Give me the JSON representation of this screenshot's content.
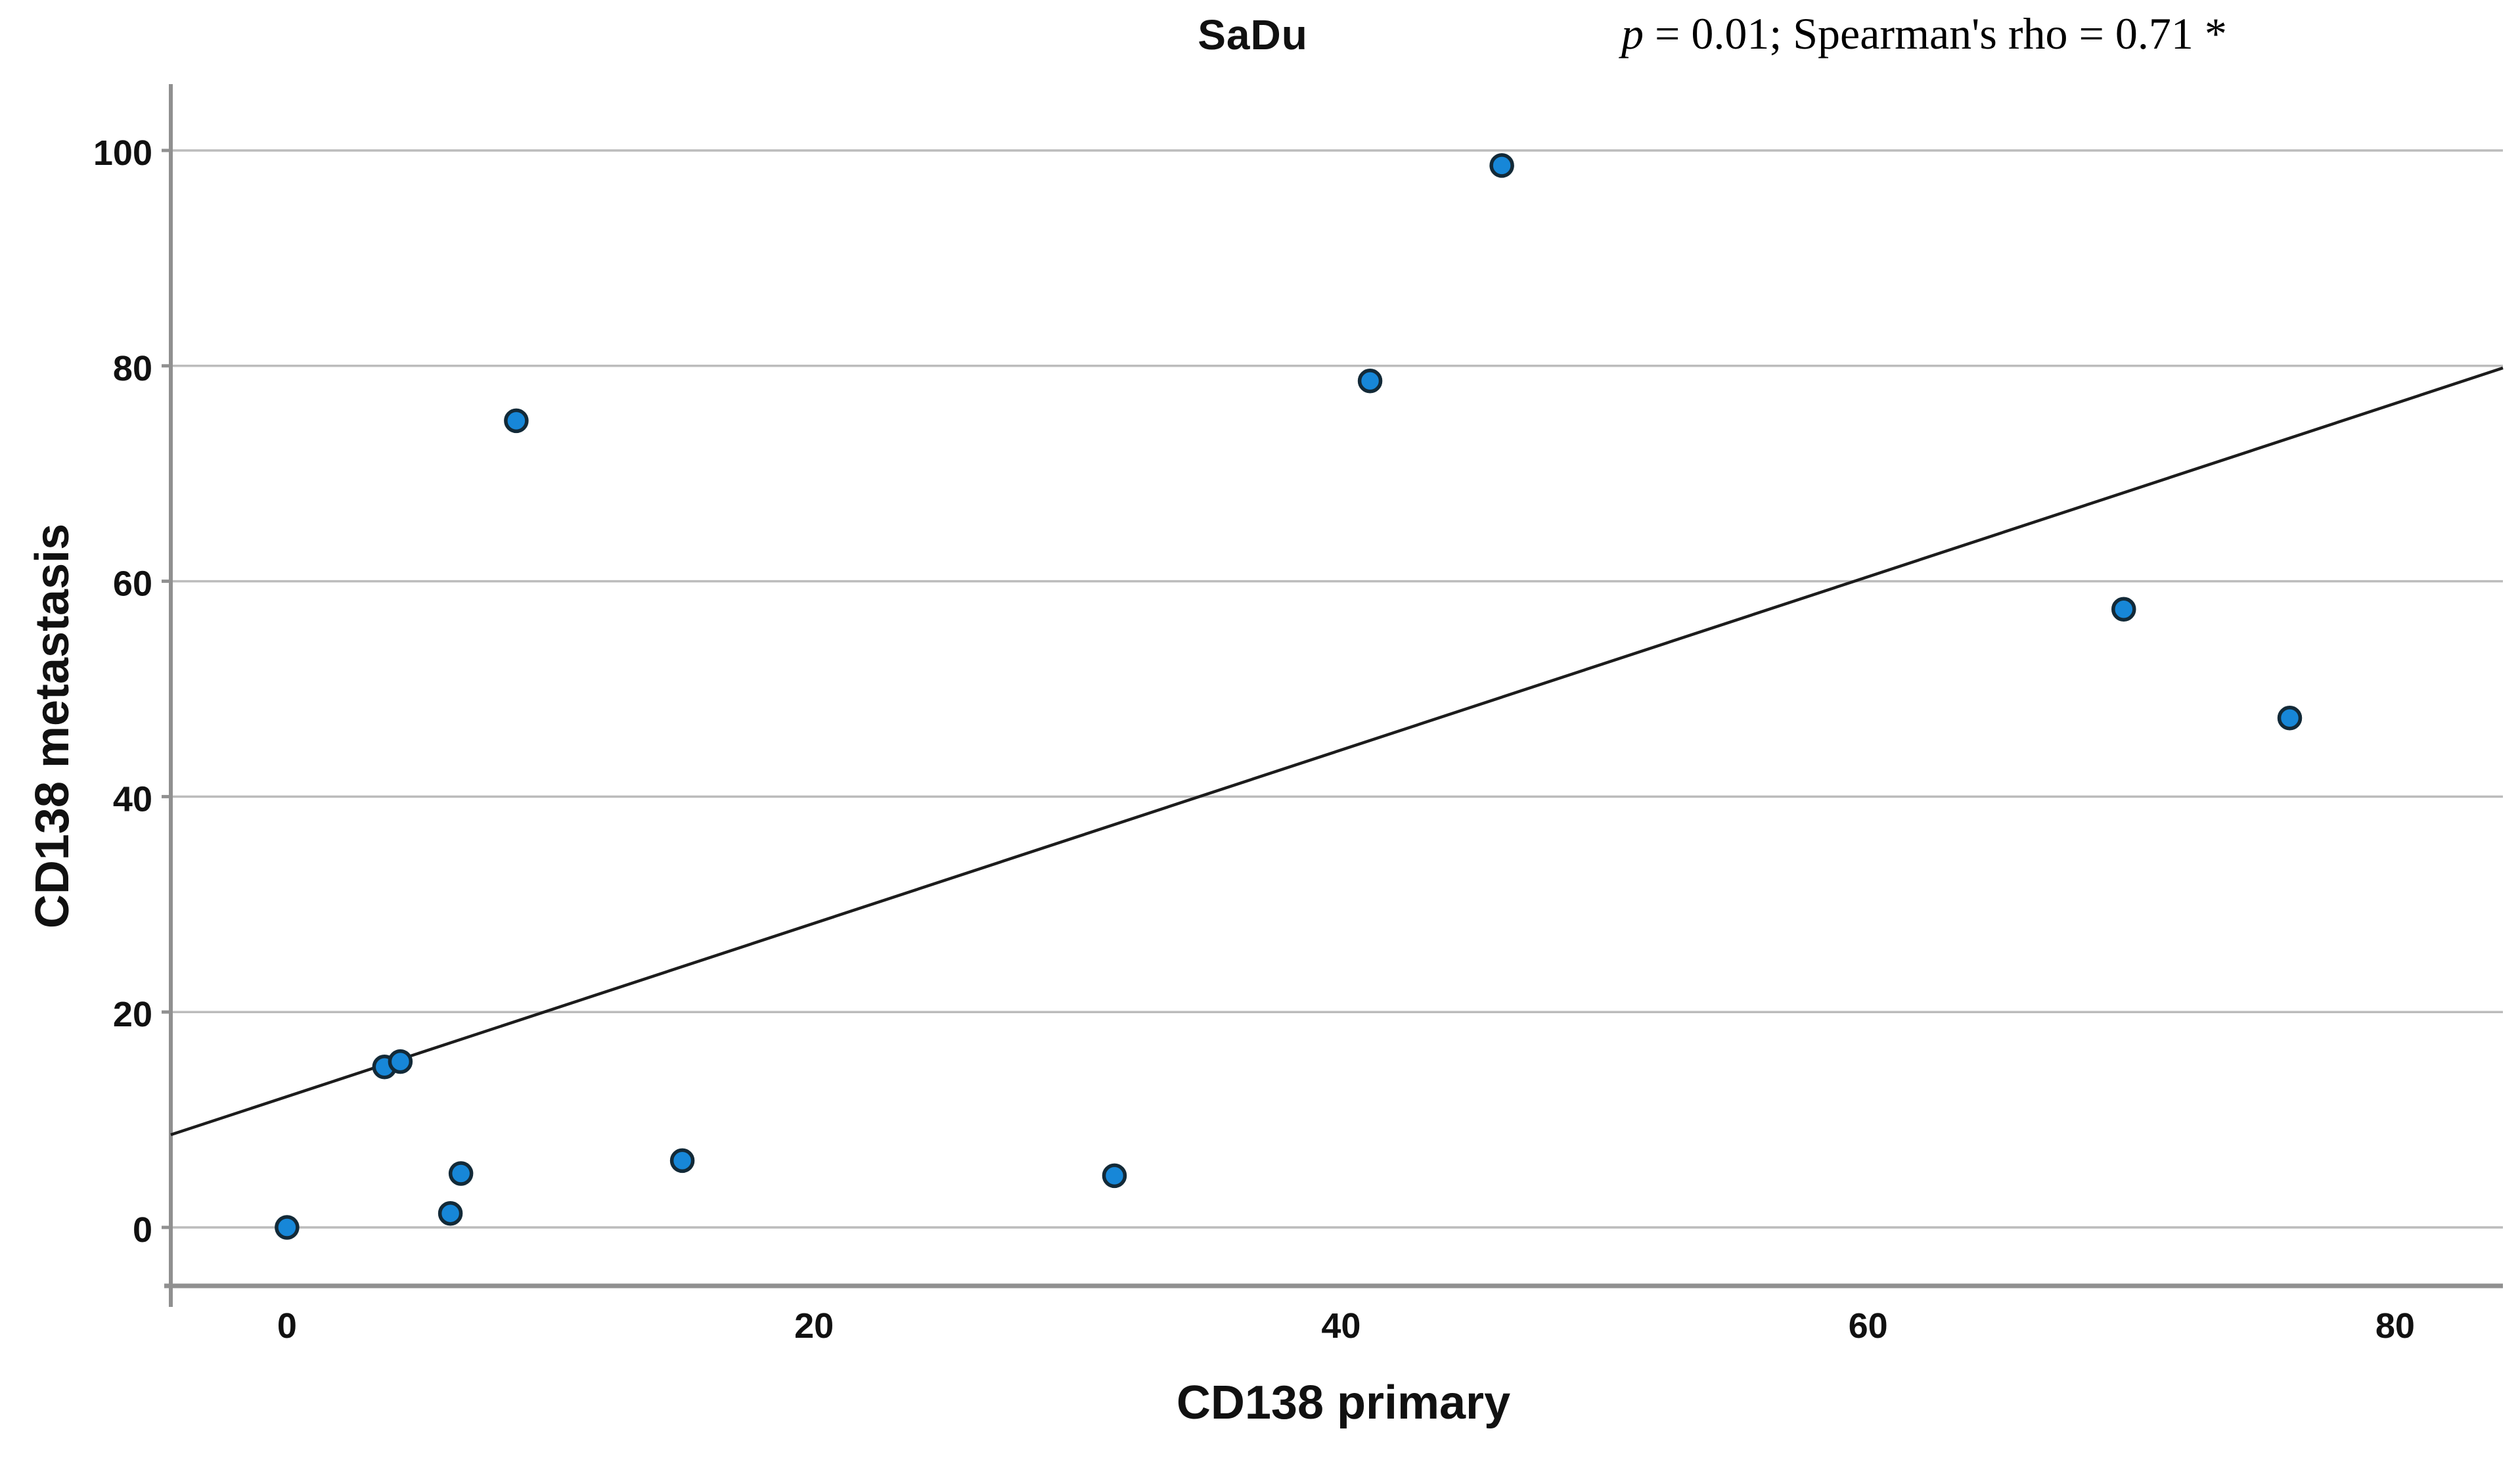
{
  "header": {
    "title": "SaDu",
    "annotation_italic": "p",
    "annotation_rest": " = 0.01; Spearman's rho = 0.71 *"
  },
  "chart_data": {
    "type": "scatter",
    "title": "SaDu",
    "annotation": "p = 0.01; Spearman's rho = 0.71 *",
    "xlabel": "CD138 primary",
    "ylabel": "CD138 metastasis",
    "xlim": [
      -4.41,
      84.09
    ],
    "ylim": [
      -5.43,
      106.16
    ],
    "x_ticks": [
      0,
      20,
      40,
      60,
      80
    ],
    "y_ticks": [
      0,
      20,
      40,
      60,
      80,
      100
    ],
    "grid": "horizontal-only",
    "legend": "none",
    "points": [
      {
        "x": 0.0,
        "y": 0.0
      },
      {
        "x": 3.7,
        "y": 14.9
      },
      {
        "x": 4.3,
        "y": 15.4
      },
      {
        "x": 6.2,
        "y": 1.3
      },
      {
        "x": 6.6,
        "y": 5.0
      },
      {
        "x": 8.7,
        "y": 74.9
      },
      {
        "x": 15.0,
        "y": 6.2
      },
      {
        "x": 31.4,
        "y": 4.8
      },
      {
        "x": 41.1,
        "y": 78.6
      },
      {
        "x": 46.1,
        "y": 98.6
      },
      {
        "x": 69.7,
        "y": 57.4
      },
      {
        "x": 76.0,
        "y": 47.3
      }
    ],
    "trend_line": {
      "x1": -4.41,
      "y1": 8.6,
      "x2": 84.09,
      "y2": 79.8
    },
    "marker": {
      "radius": 16,
      "stroke_width": 5.5
    },
    "colors": {
      "point_fill": "#1787D8",
      "point_stroke": "#132A38",
      "trend": "#1c1c1c",
      "grid": "#bcbcbc",
      "axis": "#909090",
      "text": "#111111",
      "background": "#ffffff"
    }
  }
}
